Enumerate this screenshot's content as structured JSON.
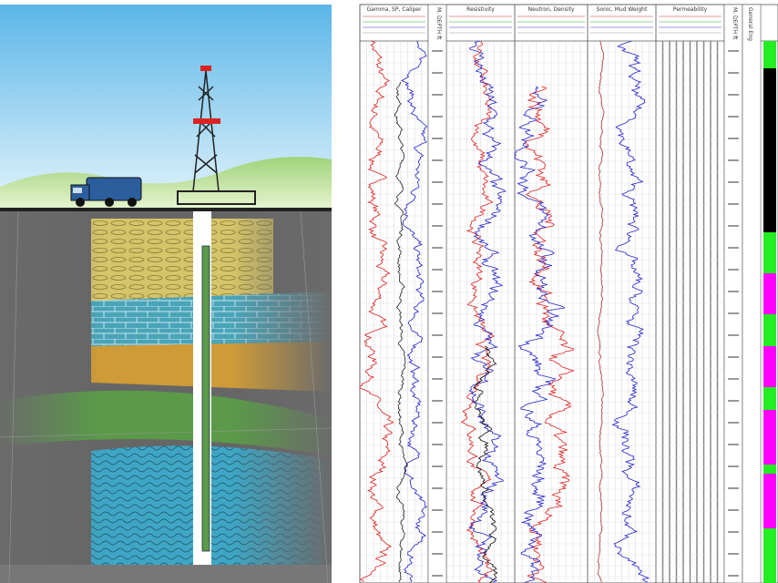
{
  "log": {
    "tracks": [
      "Gamma, SP, Caliper",
      "Resistivity",
      "Neutron, Density",
      "Sonic, Mud Weight",
      "Permeability"
    ],
    "depth_label": "M. DEPTH ft",
    "general_eng": "General Eng"
  }
}
